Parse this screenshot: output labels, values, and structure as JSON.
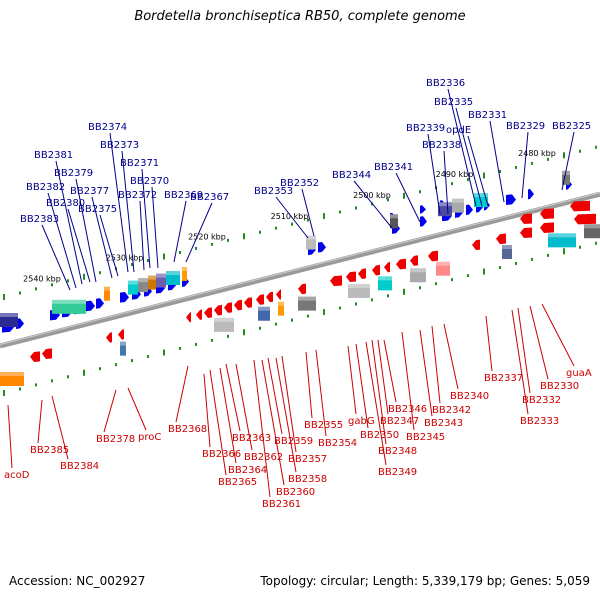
{
  "title": "Bordetella bronchiseptica RB50, complete genome",
  "accession": "Accession: NC_002927",
  "summary": "Topology: circular; Length: 5,339,179 bp; Genes: 5,059",
  "colors": {
    "forward_gene": "#0000ee",
    "reverse_gene": "#ee0000",
    "backbone": "#808080",
    "tick": "#228b22",
    "label_top": "#00008b",
    "label_bottom": "#cc0000"
  },
  "scale_labels": [
    {
      "text": "2540 kbp",
      "kbp": 2540
    },
    {
      "text": "2530 kbp",
      "kbp": 2530
    },
    {
      "text": "2520 kbp",
      "kbp": 2520
    },
    {
      "text": "2510 kbp",
      "kbp": 2510
    },
    {
      "text": "2500 kbp",
      "kbp": 2500
    },
    {
      "text": "2490 kbp",
      "kbp": 2490
    },
    {
      "text": "2480 kbp",
      "kbp": 2480
    }
  ],
  "top_labels": [
    "BB2383",
    "BB2382",
    "BB2381",
    "BB2380",
    "BB2379",
    "BB2377",
    "BB2375",
    "BB2374",
    "BB2373",
    "BB2372",
    "BB2371",
    "BB2370",
    "BB2369",
    "BB2367",
    "BB2353",
    "BB2352",
    "BB2344",
    "BB2341",
    "BB2339",
    "BB2338",
    "BB2336",
    "BB2335",
    "opdE",
    "BB2331",
    "BB2329",
    "BB2325"
  ],
  "bottom_labels": [
    "acoD",
    "BB2385",
    "BB2384",
    "BB2378",
    "proC",
    "BB2368",
    "BB2366",
    "BB2365",
    "BB2364",
    "BB2363",
    "BB2362",
    "BB2361",
    "BB2360",
    "BB2359",
    "BB2358",
    "BB2357",
    "BB2355",
    "BB2354",
    "gabG",
    "BB2350",
    "BB2349",
    "BB2348",
    "BB2347",
    "BB2346",
    "BB2345",
    "BB2343",
    "BB2342",
    "BB2340",
    "BB2337",
    "BB2333",
    "BB2332",
    "BB2330",
    "guaA"
  ]
}
